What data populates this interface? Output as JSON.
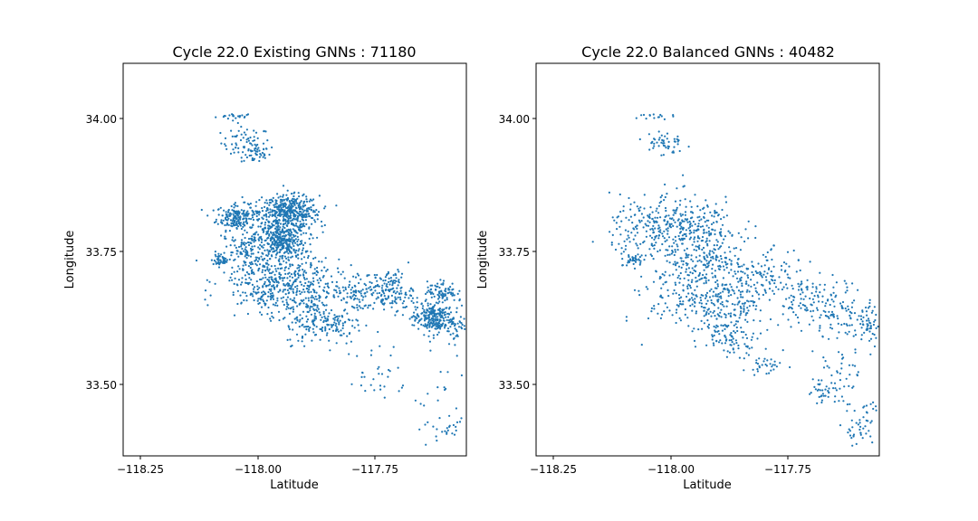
{
  "colors": {
    "points": "#1f77b4",
    "axes": "#000000",
    "background": "#ffffff"
  },
  "chart_data": [
    {
      "type": "scatter",
      "title": "Cycle 22.0 Existing GNNs : 71180",
      "xlabel": "Latitude",
      "ylabel": "Longitude",
      "xlim": [
        -118.3,
        -117.6
      ],
      "ylim": [
        33.37,
        34.11
      ],
      "xticks": [
        -118.25,
        -118.0,
        -117.75
      ],
      "xtick_labels": [
        "−118.25",
        "−118.00",
        "−117.75"
      ],
      "yticks": [
        33.5,
        33.75,
        34.0
      ],
      "ytick_labels": [
        "33.50",
        "33.75",
        "34.00"
      ],
      "grid": false,
      "marker": "dot",
      "clusters": [
        {
          "x": -118.07,
          "y": 34.01,
          "sx": 0.02,
          "sy": 0.003,
          "n": 20
        },
        {
          "x": -118.05,
          "y": 33.96,
          "sx": 0.025,
          "sy": 0.015,
          "n": 60
        },
        {
          "x": -118.03,
          "y": 33.94,
          "sx": 0.015,
          "sy": 0.01,
          "n": 40
        },
        {
          "x": -118.07,
          "y": 33.82,
          "sx": 0.02,
          "sy": 0.012,
          "n": 160
        },
        {
          "x": -117.96,
          "y": 33.83,
          "sx": 0.03,
          "sy": 0.015,
          "n": 350
        },
        {
          "x": -117.99,
          "y": 33.8,
          "sx": 0.04,
          "sy": 0.03,
          "n": 250
        },
        {
          "x": -117.97,
          "y": 33.77,
          "sx": 0.02,
          "sy": 0.015,
          "n": 200
        },
        {
          "x": -118.04,
          "y": 33.76,
          "sx": 0.03,
          "sy": 0.02,
          "n": 120
        },
        {
          "x": -118.0,
          "y": 33.7,
          "sx": 0.05,
          "sy": 0.03,
          "n": 280
        },
        {
          "x": -117.94,
          "y": 33.68,
          "sx": 0.04,
          "sy": 0.03,
          "n": 220
        },
        {
          "x": -117.89,
          "y": 33.62,
          "sx": 0.04,
          "sy": 0.02,
          "n": 160
        },
        {
          "x": -117.82,
          "y": 33.68,
          "sx": 0.03,
          "sy": 0.02,
          "n": 120
        },
        {
          "x": -117.75,
          "y": 33.68,
          "sx": 0.02,
          "sy": 0.02,
          "n": 120
        },
        {
          "x": -117.67,
          "y": 33.63,
          "sx": 0.02,
          "sy": 0.015,
          "n": 240
        },
        {
          "x": -117.65,
          "y": 33.68,
          "sx": 0.015,
          "sy": 0.01,
          "n": 80
        },
        {
          "x": -117.62,
          "y": 33.62,
          "sx": 0.01,
          "sy": 0.02,
          "n": 40
        },
        {
          "x": -118.1,
          "y": 33.74,
          "sx": 0.01,
          "sy": 0.005,
          "n": 40
        },
        {
          "x": -117.78,
          "y": 33.52,
          "sx": 0.03,
          "sy": 0.03,
          "n": 30
        },
        {
          "x": -117.66,
          "y": 33.47,
          "sx": 0.03,
          "sy": 0.04,
          "n": 30
        },
        {
          "x": -117.64,
          "y": 33.42,
          "sx": 0.015,
          "sy": 0.01,
          "n": 15
        }
      ]
    },
    {
      "type": "scatter",
      "title": "Cycle 22.0 Balanced GNNs : 40482",
      "xlabel": "Latitude",
      "ylabel": "Longitude",
      "xlim": [
        -118.3,
        -117.6
      ],
      "ylim": [
        33.37,
        34.11
      ],
      "xticks": [
        -118.25,
        -118.0,
        -117.75
      ],
      "xtick_labels": [
        "−118.25",
        "−118.00",
        "−117.75"
      ],
      "yticks": [
        33.5,
        33.75,
        34.0
      ],
      "ytick_labels": [
        "33.50",
        "33.75",
        "34.00"
      ],
      "grid": false,
      "marker": "dot",
      "clusters": [
        {
          "x": -118.07,
          "y": 34.01,
          "sx": 0.02,
          "sy": 0.003,
          "n": 15
        },
        {
          "x": -118.04,
          "y": 33.96,
          "sx": 0.02,
          "sy": 0.012,
          "n": 50
        },
        {
          "x": -118.07,
          "y": 33.8,
          "sx": 0.04,
          "sy": 0.03,
          "n": 160
        },
        {
          "x": -117.98,
          "y": 33.8,
          "sx": 0.05,
          "sy": 0.03,
          "n": 200
        },
        {
          "x": -117.97,
          "y": 33.74,
          "sx": 0.05,
          "sy": 0.03,
          "n": 200
        },
        {
          "x": -117.95,
          "y": 33.66,
          "sx": 0.06,
          "sy": 0.03,
          "n": 240
        },
        {
          "x": -117.85,
          "y": 33.7,
          "sx": 0.05,
          "sy": 0.03,
          "n": 160
        },
        {
          "x": -117.9,
          "y": 33.6,
          "sx": 0.03,
          "sy": 0.02,
          "n": 100
        },
        {
          "x": -117.74,
          "y": 33.66,
          "sx": 0.03,
          "sy": 0.02,
          "n": 80
        },
        {
          "x": -117.67,
          "y": 33.64,
          "sx": 0.03,
          "sy": 0.03,
          "n": 90
        },
        {
          "x": -117.62,
          "y": 33.62,
          "sx": 0.01,
          "sy": 0.02,
          "n": 40
        },
        {
          "x": -118.1,
          "y": 33.74,
          "sx": 0.01,
          "sy": 0.005,
          "n": 30
        },
        {
          "x": -117.83,
          "y": 33.54,
          "sx": 0.02,
          "sy": 0.01,
          "n": 30
        },
        {
          "x": -117.69,
          "y": 33.52,
          "sx": 0.025,
          "sy": 0.03,
          "n": 50
        },
        {
          "x": -117.72,
          "y": 33.49,
          "sx": 0.015,
          "sy": 0.01,
          "n": 25
        },
        {
          "x": -117.64,
          "y": 33.42,
          "sx": 0.02,
          "sy": 0.015,
          "n": 35
        },
        {
          "x": -117.62,
          "y": 33.46,
          "sx": 0.01,
          "sy": 0.005,
          "n": 10
        }
      ]
    }
  ]
}
